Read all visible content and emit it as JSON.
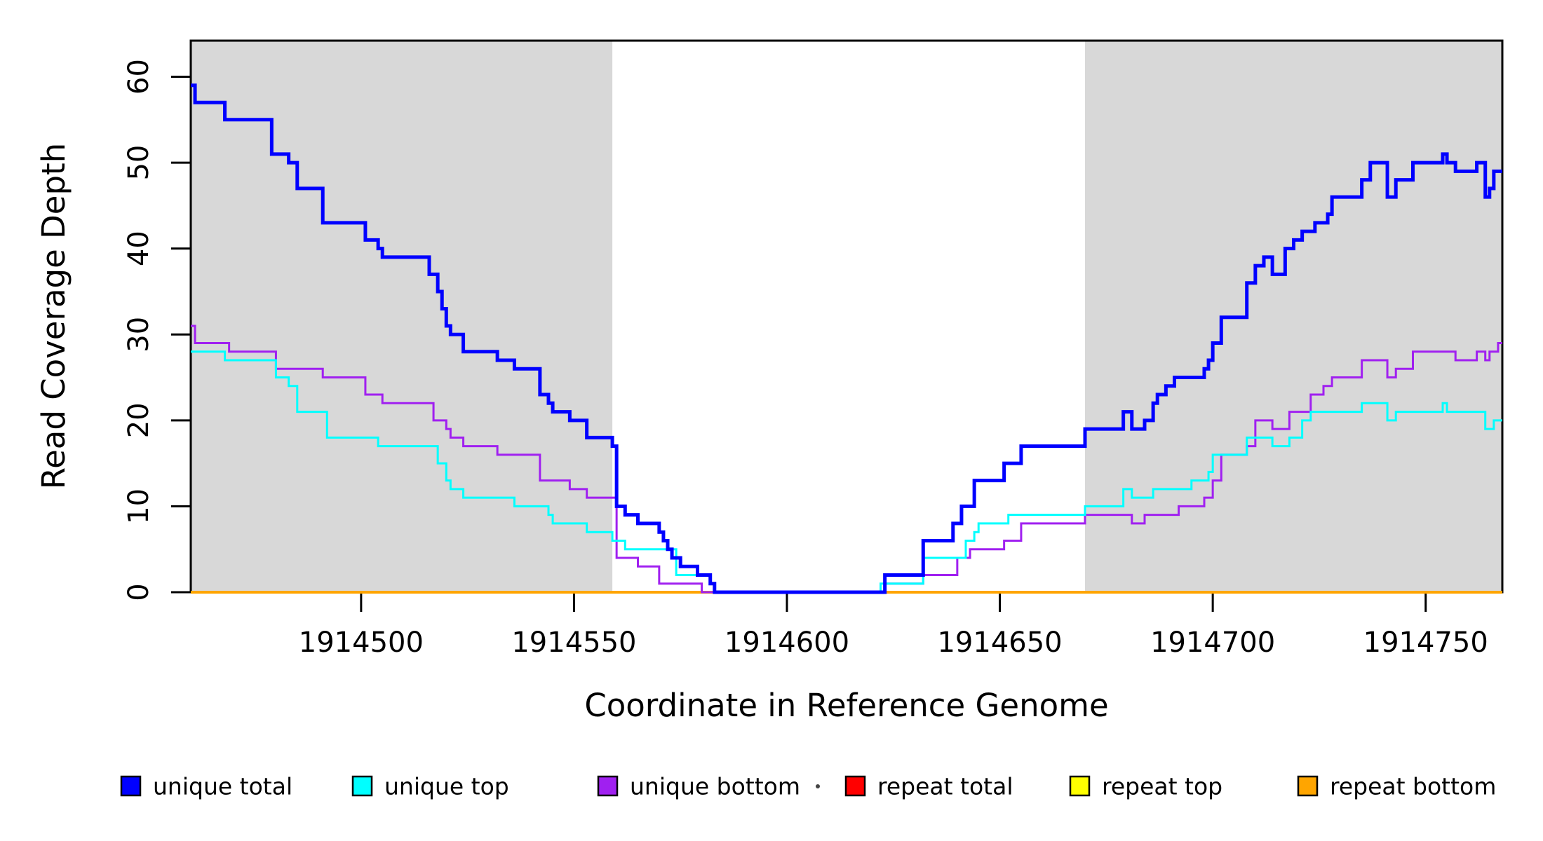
{
  "chart_data": {
    "type": "line",
    "subtype": "step",
    "title": "",
    "xlabel": "Coordinate in Reference Genome",
    "ylabel": "Read Coverage Depth",
    "xlim": [
      1914460,
      1914768
    ],
    "ylim": [
      0,
      64.2
    ],
    "x_ticks": [
      1914500,
      1914550,
      1914600,
      1914650,
      1914700,
      1914750
    ],
    "x_tick_labels": [
      "1914500",
      "1914550",
      "1914600",
      "1914650",
      "1914700",
      "1914750"
    ],
    "y_ticks": [
      0,
      10,
      20,
      30,
      40,
      50,
      60
    ],
    "y_tick_labels": [
      "0",
      "10",
      "20",
      "30",
      "40",
      "50",
      "60"
    ],
    "grid": false,
    "background_color": "#ffffff",
    "shade_color": "#d8d8d8",
    "shaded_regions": [
      {
        "x0": 1914460,
        "x1": 1914559
      },
      {
        "x0": 1914670,
        "x1": 1914768
      }
    ],
    "legend_position": "bottom",
    "legend": [
      {
        "label": "unique total",
        "color": "#0000ff"
      },
      {
        "label": "unique top",
        "color": "#00ffff"
      },
      {
        "label": "unique bottom",
        "color": "#a020f0"
      },
      {
        "label": "repeat total",
        "color": "#ff0000"
      },
      {
        "label": "repeat top",
        "color": "#ffff00"
      },
      {
        "label": "repeat bottom",
        "color": "#ffa500"
      }
    ],
    "series": [
      {
        "name": "repeat total",
        "color": "#ff0000",
        "width": 3,
        "steps": [
          [
            1914460,
            0
          ]
        ]
      },
      {
        "name": "repeat top",
        "color": "#ffff00",
        "width": 3,
        "steps": [
          [
            1914460,
            0
          ]
        ]
      },
      {
        "name": "repeat bottom",
        "color": "#ffa500",
        "width": 4,
        "steps": [
          [
            1914460,
            0
          ]
        ]
      },
      {
        "name": "unique bottom",
        "color": "#a020f0",
        "width": 3,
        "steps": [
          [
            1914460,
            31
          ],
          [
            1914461,
            29
          ],
          [
            1914469,
            28
          ],
          [
            1914480,
            26
          ],
          [
            1914491,
            25
          ],
          [
            1914501,
            23
          ],
          [
            1914505,
            22
          ],
          [
            1914517,
            20
          ],
          [
            1914520,
            19
          ],
          [
            1914521,
            18
          ],
          [
            1914524,
            17
          ],
          [
            1914532,
            16
          ],
          [
            1914542,
            13
          ],
          [
            1914549,
            12
          ],
          [
            1914553,
            11
          ],
          [
            1914560,
            4
          ],
          [
            1914565,
            3
          ],
          [
            1914570,
            1
          ],
          [
            1914580,
            0
          ],
          [
            1914623,
            1
          ],
          [
            1914632,
            2
          ],
          [
            1914640,
            4
          ],
          [
            1914643,
            5
          ],
          [
            1914651,
            6
          ],
          [
            1914655,
            8
          ],
          [
            1914670,
            9
          ],
          [
            1914681,
            8
          ],
          [
            1914684,
            9
          ],
          [
            1914692,
            10
          ],
          [
            1914698,
            11
          ],
          [
            1914700,
            13
          ],
          [
            1914702,
            16
          ],
          [
            1914708,
            17
          ],
          [
            1914710,
            20
          ],
          [
            1914714,
            19
          ],
          [
            1914718,
            21
          ],
          [
            1914723,
            23
          ],
          [
            1914726,
            24
          ],
          [
            1914728,
            25
          ],
          [
            1914735,
            27
          ],
          [
            1914741,
            25
          ],
          [
            1914743,
            26
          ],
          [
            1914747,
            28
          ],
          [
            1914757,
            27
          ],
          [
            1914762,
            28
          ],
          [
            1914764,
            27
          ],
          [
            1914765,
            28
          ],
          [
            1914767,
            29
          ]
        ]
      },
      {
        "name": "unique top",
        "color": "#00ffff",
        "width": 3,
        "steps": [
          [
            1914460,
            28
          ],
          [
            1914468,
            27
          ],
          [
            1914480,
            25
          ],
          [
            1914483,
            24
          ],
          [
            1914485,
            21
          ],
          [
            1914492,
            18
          ],
          [
            1914504,
            17
          ],
          [
            1914518,
            15
          ],
          [
            1914520,
            13
          ],
          [
            1914521,
            12
          ],
          [
            1914524,
            11
          ],
          [
            1914536,
            10
          ],
          [
            1914544,
            9
          ],
          [
            1914545,
            8
          ],
          [
            1914553,
            7
          ],
          [
            1914559,
            6
          ],
          [
            1914562,
            5
          ],
          [
            1914574,
            2
          ],
          [
            1914582,
            1
          ],
          [
            1914583,
            0
          ],
          [
            1914622,
            1
          ],
          [
            1914632,
            4
          ],
          [
            1914642,
            6
          ],
          [
            1914644,
            7
          ],
          [
            1914645,
            8
          ],
          [
            1914652,
            9
          ],
          [
            1914670,
            10
          ],
          [
            1914679,
            12
          ],
          [
            1914681,
            11
          ],
          [
            1914686,
            12
          ],
          [
            1914695,
            13
          ],
          [
            1914699,
            14
          ],
          [
            1914700,
            16
          ],
          [
            1914708,
            18
          ],
          [
            1914714,
            17
          ],
          [
            1914718,
            18
          ],
          [
            1914721,
            20
          ],
          [
            1914723,
            21
          ],
          [
            1914735,
            22
          ],
          [
            1914741,
            20
          ],
          [
            1914743,
            21
          ],
          [
            1914754,
            22
          ],
          [
            1914755,
            21
          ],
          [
            1914764,
            19
          ],
          [
            1914766,
            20
          ]
        ]
      },
      {
        "name": "unique total",
        "color": "#0000ff",
        "width": 5,
        "steps": [
          [
            1914460,
            59
          ],
          [
            1914461,
            57
          ],
          [
            1914468,
            55
          ],
          [
            1914479,
            51
          ],
          [
            1914483,
            50
          ],
          [
            1914485,
            47
          ],
          [
            1914491,
            43
          ],
          [
            1914501,
            41
          ],
          [
            1914504,
            40
          ],
          [
            1914505,
            39
          ],
          [
            1914516,
            37
          ],
          [
            1914518,
            35
          ],
          [
            1914519,
            33
          ],
          [
            1914520,
            31
          ],
          [
            1914521,
            30
          ],
          [
            1914524,
            28
          ],
          [
            1914532,
            27
          ],
          [
            1914536,
            26
          ],
          [
            1914542,
            23
          ],
          [
            1914544,
            22
          ],
          [
            1914545,
            21
          ],
          [
            1914549,
            20
          ],
          [
            1914553,
            18
          ],
          [
            1914559,
            17
          ],
          [
            1914560,
            10
          ],
          [
            1914562,
            9
          ],
          [
            1914565,
            8
          ],
          [
            1914570,
            7
          ],
          [
            1914571,
            6
          ],
          [
            1914572,
            5
          ],
          [
            1914573,
            4
          ],
          [
            1914575,
            3
          ],
          [
            1914579,
            2
          ],
          [
            1914582,
            1
          ],
          [
            1914583,
            0
          ],
          [
            1914623,
            2
          ],
          [
            1914632,
            6
          ],
          [
            1914639,
            8
          ],
          [
            1914641,
            10
          ],
          [
            1914644,
            13
          ],
          [
            1914651,
            15
          ],
          [
            1914655,
            17
          ],
          [
            1914670,
            19
          ],
          [
            1914679,
            21
          ],
          [
            1914681,
            19
          ],
          [
            1914684,
            20
          ],
          [
            1914686,
            22
          ],
          [
            1914687,
            23
          ],
          [
            1914689,
            24
          ],
          [
            1914691,
            25
          ],
          [
            1914698,
            26
          ],
          [
            1914699,
            27
          ],
          [
            1914700,
            29
          ],
          [
            1914702,
            32
          ],
          [
            1914708,
            36
          ],
          [
            1914710,
            38
          ],
          [
            1914712,
            39
          ],
          [
            1914714,
            37
          ],
          [
            1914717,
            40
          ],
          [
            1914719,
            41
          ],
          [
            1914721,
            42
          ],
          [
            1914724,
            43
          ],
          [
            1914727,
            44
          ],
          [
            1914728,
            46
          ],
          [
            1914735,
            48
          ],
          [
            1914737,
            50
          ],
          [
            1914741,
            46
          ],
          [
            1914743,
            48
          ],
          [
            1914747,
            50
          ],
          [
            1914754,
            51
          ],
          [
            1914755,
            50
          ],
          [
            1914757,
            49
          ],
          [
            1914762,
            50
          ],
          [
            1914764,
            46
          ],
          [
            1914765,
            47
          ],
          [
            1914766,
            49
          ]
        ]
      }
    ],
    "stray_mark": "·"
  }
}
